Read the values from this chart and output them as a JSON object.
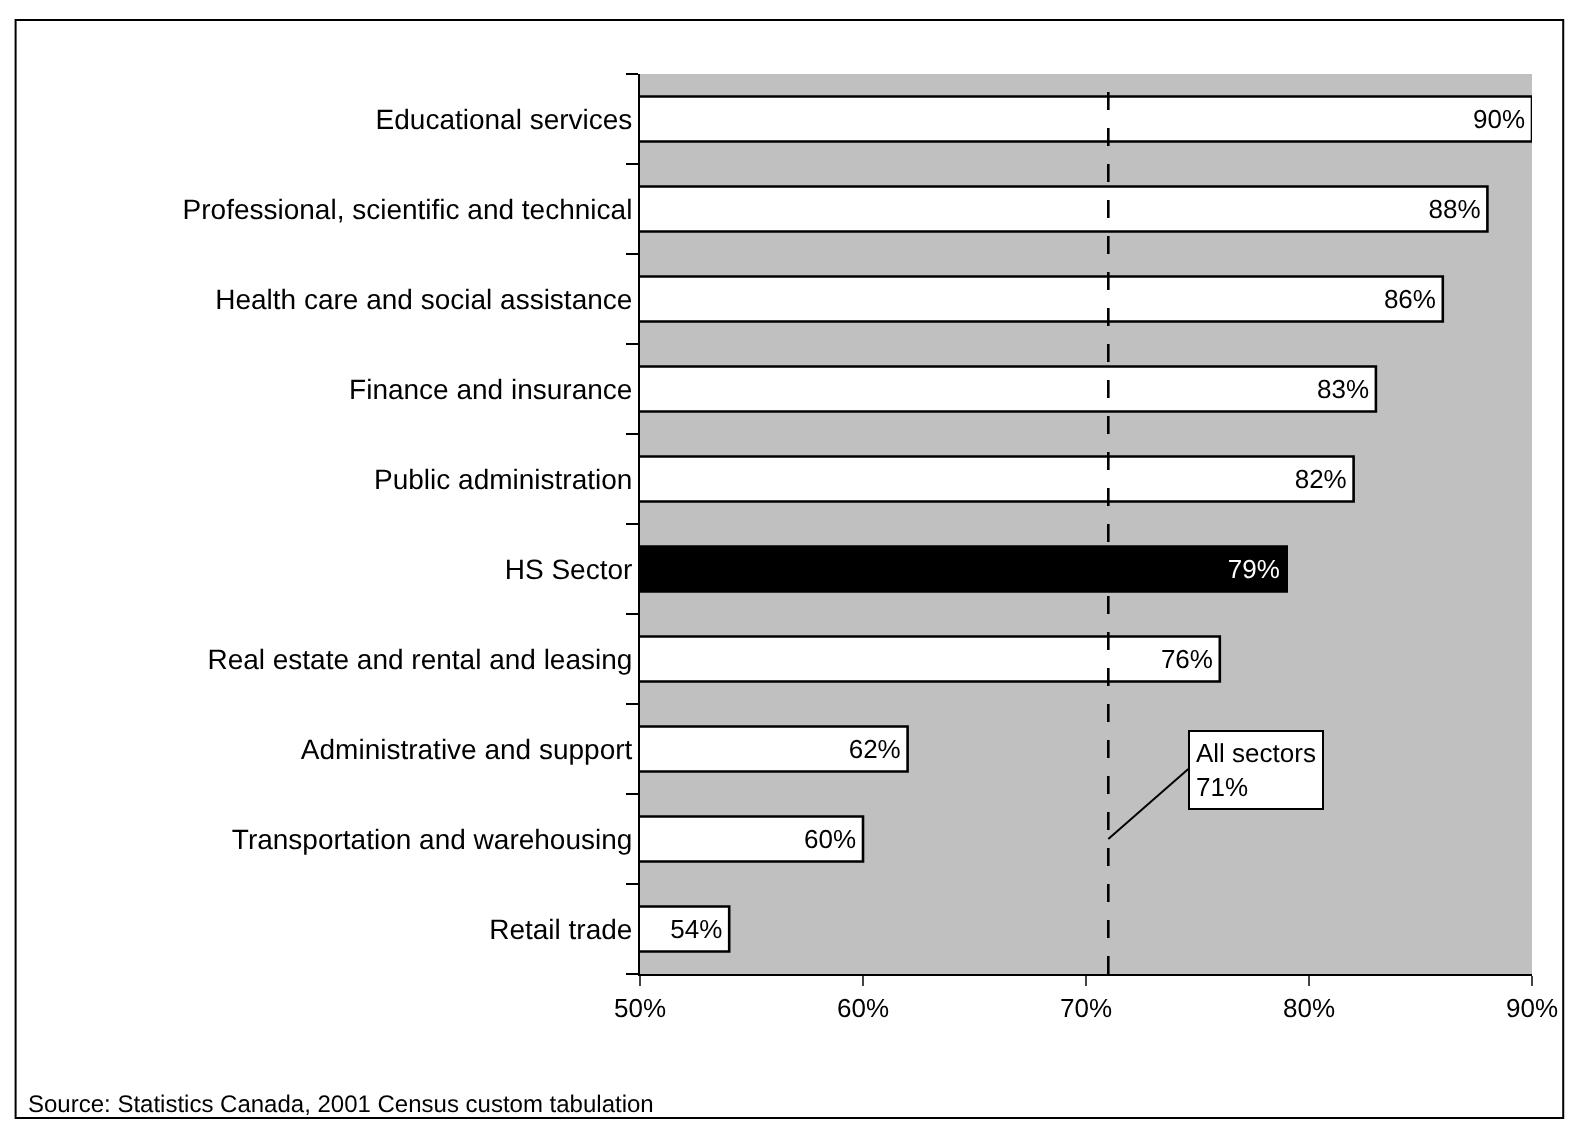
{
  "chart_data": {
    "type": "bar",
    "orientation": "horizontal",
    "categories": [
      "Educational services",
      "Professional, scientific and technical",
      "Health care and social assistance",
      "Finance and insurance",
      "Public administration",
      "HS Sector",
      "Real estate and rental and leasing",
      "Administrative and support",
      "Transportation and warehousing",
      "Retail trade"
    ],
    "values": [
      90,
      88,
      86,
      83,
      82,
      79,
      76,
      62,
      60,
      54
    ],
    "value_labels": [
      "90%",
      "88%",
      "86%",
      "83%",
      "82%",
      "79%",
      "76%",
      "62%",
      "60%",
      "54%"
    ],
    "colors": [
      "#ffffff",
      "#ffffff",
      "#ffffff",
      "#ffffff",
      "#ffffff",
      "#000000",
      "#ffffff",
      "#ffffff",
      "#ffffff",
      "#ffffff"
    ],
    "xlim": [
      50,
      90
    ],
    "xticks": [
      {
        "value": 50,
        "label": "50%"
      },
      {
        "value": 60,
        "label": "60%"
      },
      {
        "value": 70,
        "label": "70%"
      },
      {
        "value": 80,
        "label": "80%"
      },
      {
        "value": 90,
        "label": "90%"
      }
    ],
    "ref_lines": [
      {
        "axis": "x",
        "value": 71,
        "label": "All sectors\n71%",
        "color": "#000000",
        "line_style": "dashed"
      }
    ],
    "annotations": [
      "Source: Statistics Canada, 2001 Census custom tabulation"
    ],
    "grid": false
  }
}
